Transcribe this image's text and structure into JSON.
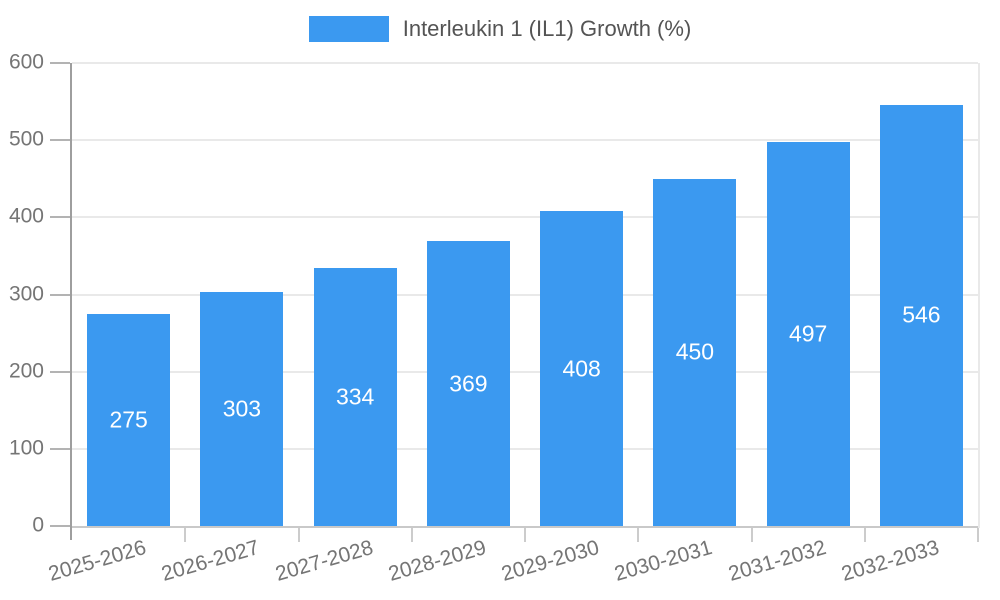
{
  "chart_data": {
    "type": "bar",
    "title": "",
    "legend": "Interleukin 1 (IL1) Growth (%)",
    "legend_position": "top",
    "categories": [
      "2025-2026",
      "2026-2027",
      "2027-2028",
      "2028-2029",
      "2029-2030",
      "2030-2031",
      "2031-2032",
      "2032-2033"
    ],
    "values": [
      275,
      303,
      334,
      369,
      408,
      450,
      497,
      546
    ],
    "xlabel": "",
    "ylabel": "",
    "ylim": [
      0,
      600
    ],
    "yticks": [
      0,
      100,
      200,
      300,
      400,
      500,
      600
    ],
    "grid": true,
    "label_rotation_deg": -16,
    "colors": {
      "bar": "#3b99f0",
      "value_label": "#ffffff",
      "axis_text": "#757575",
      "legend_text": "#545454",
      "gridline": "#e9e9e9",
      "y_axis_line": "#9e9e9e",
      "x_axis_line": "#c9c9c9",
      "y_tick": "#b3b3b3",
      "x_tick": "#cccccc",
      "background": "#ffffff"
    }
  }
}
